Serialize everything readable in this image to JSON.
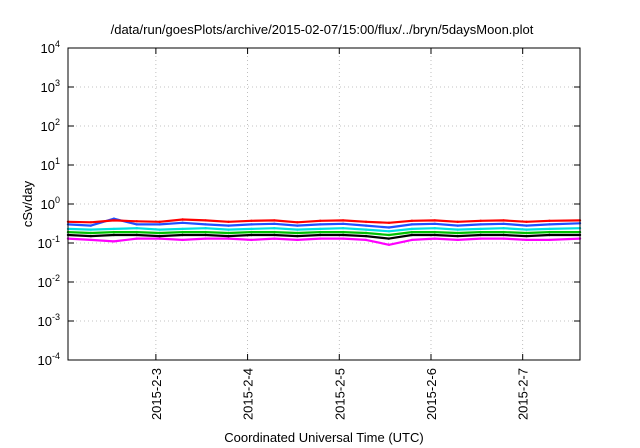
{
  "chart_data": {
    "type": "line",
    "title": "/data/run/goesPlots/archive/2015-02-07/15:00/flux/../bryn/5daysMoon.plot",
    "xlabel": "Coordinated Universal Time (UTC)",
    "ylabel": "cSv/day",
    "yscale": "log",
    "ylim": [
      0.0001,
      10000
    ],
    "xlim": [
      "2015-02-02 01:00",
      "2015-02-07 15:00"
    ],
    "grid": true,
    "x_ticks": [
      {
        "date": "2015-02-03",
        "label": "2015-2-3"
      },
      {
        "date": "2015-02-04",
        "label": "2015-2-4"
      },
      {
        "date": "2015-02-05",
        "label": "2015-2-5"
      },
      {
        "date": "2015-02-06",
        "label": "2015-2-6"
      },
      {
        "date": "2015-02-07",
        "label": "2015-2-7"
      }
    ],
    "y_ticks": [
      {
        "value": 0.0001,
        "base": "10",
        "exp": "-4"
      },
      {
        "value": 0.001,
        "base": "10",
        "exp": "-3"
      },
      {
        "value": 0.01,
        "base": "10",
        "exp": "-2"
      },
      {
        "value": 0.1,
        "base": "10",
        "exp": "-1"
      },
      {
        "value": 1,
        "base": "10",
        "exp": "0"
      },
      {
        "value": 10,
        "base": "10",
        "exp": "1"
      },
      {
        "value": 100,
        "base": "10",
        "exp": "2"
      },
      {
        "value": 1000,
        "base": "10",
        "exp": "3"
      },
      {
        "value": 10000,
        "base": "10",
        "exp": "4"
      }
    ],
    "series": [
      {
        "color": "#ff00ff",
        "x": [
          "2015-02-02 01:00",
          "2015-02-02 07:00",
          "2015-02-02 13:00",
          "2015-02-02 19:00",
          "2015-02-03 01:00",
          "2015-02-03 07:00",
          "2015-02-03 13:00",
          "2015-02-03 19:00",
          "2015-02-04 01:00",
          "2015-02-04 07:00",
          "2015-02-04 13:00",
          "2015-02-04 19:00",
          "2015-02-05 01:00",
          "2015-02-05 07:00",
          "2015-02-05 13:00",
          "2015-02-05 19:00",
          "2015-02-06 01:00",
          "2015-02-06 07:00",
          "2015-02-06 13:00",
          "2015-02-06 19:00",
          "2015-02-07 01:00",
          "2015-02-07 07:00",
          "2015-02-07 15:00"
        ],
        "values": [
          0.13,
          0.12,
          0.11,
          0.13,
          0.13,
          0.12,
          0.13,
          0.13,
          0.12,
          0.13,
          0.12,
          0.13,
          0.13,
          0.12,
          0.09,
          0.12,
          0.13,
          0.12,
          0.13,
          0.13,
          0.12,
          0.12,
          0.13
        ]
      },
      {
        "color": "#000000",
        "x": [
          "2015-02-02 01:00",
          "2015-02-02 07:00",
          "2015-02-02 13:00",
          "2015-02-02 19:00",
          "2015-02-03 01:00",
          "2015-02-03 07:00",
          "2015-02-03 13:00",
          "2015-02-03 19:00",
          "2015-02-04 01:00",
          "2015-02-04 07:00",
          "2015-02-04 13:00",
          "2015-02-04 19:00",
          "2015-02-05 01:00",
          "2015-02-05 07:00",
          "2015-02-05 13:00",
          "2015-02-05 19:00",
          "2015-02-06 01:00",
          "2015-02-06 07:00",
          "2015-02-06 13:00",
          "2015-02-06 19:00",
          "2015-02-07 01:00",
          "2015-02-07 07:00",
          "2015-02-07 15:00"
        ],
        "values": [
          0.16,
          0.15,
          0.16,
          0.16,
          0.15,
          0.16,
          0.16,
          0.15,
          0.16,
          0.16,
          0.15,
          0.16,
          0.16,
          0.15,
          0.13,
          0.16,
          0.16,
          0.15,
          0.16,
          0.16,
          0.15,
          0.16,
          0.16
        ]
      },
      {
        "color": "#00c000",
        "x": [
          "2015-02-02 01:00",
          "2015-02-02 07:00",
          "2015-02-02 13:00",
          "2015-02-02 19:00",
          "2015-02-03 01:00",
          "2015-02-03 07:00",
          "2015-02-03 13:00",
          "2015-02-03 19:00",
          "2015-02-04 01:00",
          "2015-02-04 07:00",
          "2015-02-04 13:00",
          "2015-02-04 19:00",
          "2015-02-05 01:00",
          "2015-02-05 07:00",
          "2015-02-05 13:00",
          "2015-02-05 19:00",
          "2015-02-06 01:00",
          "2015-02-06 07:00",
          "2015-02-06 13:00",
          "2015-02-06 19:00",
          "2015-02-07 01:00",
          "2015-02-07 07:00",
          "2015-02-07 15:00"
        ],
        "values": [
          0.19,
          0.18,
          0.19,
          0.19,
          0.18,
          0.19,
          0.19,
          0.18,
          0.19,
          0.19,
          0.18,
          0.19,
          0.19,
          0.18,
          0.16,
          0.19,
          0.19,
          0.18,
          0.19,
          0.19,
          0.18,
          0.19,
          0.19
        ]
      },
      {
        "color": "#00e0e0",
        "x": [
          "2015-02-02 01:00",
          "2015-02-02 07:00",
          "2015-02-02 13:00",
          "2015-02-02 19:00",
          "2015-02-03 01:00",
          "2015-02-03 07:00",
          "2015-02-03 13:00",
          "2015-02-03 19:00",
          "2015-02-04 01:00",
          "2015-02-04 07:00",
          "2015-02-04 13:00",
          "2015-02-04 19:00",
          "2015-02-05 01:00",
          "2015-02-05 07:00",
          "2015-02-05 13:00",
          "2015-02-05 19:00",
          "2015-02-06 01:00",
          "2015-02-06 07:00",
          "2015-02-06 13:00",
          "2015-02-06 19:00",
          "2015-02-07 01:00",
          "2015-02-07 07:00",
          "2015-02-07 15:00"
        ],
        "values": [
          0.23,
          0.22,
          0.23,
          0.24,
          0.22,
          0.23,
          0.24,
          0.22,
          0.23,
          0.24,
          0.22,
          0.23,
          0.24,
          0.22,
          0.2,
          0.23,
          0.24,
          0.22,
          0.23,
          0.24,
          0.22,
          0.23,
          0.24
        ]
      },
      {
        "color": "#2050ff",
        "x": [
          "2015-02-02 01:00",
          "2015-02-02 07:00",
          "2015-02-02 13:00",
          "2015-02-02 19:00",
          "2015-02-03 01:00",
          "2015-02-03 07:00",
          "2015-02-03 13:00",
          "2015-02-03 19:00",
          "2015-02-04 01:00",
          "2015-02-04 07:00",
          "2015-02-04 13:00",
          "2015-02-04 19:00",
          "2015-02-05 01:00",
          "2015-02-05 07:00",
          "2015-02-05 13:00",
          "2015-02-05 19:00",
          "2015-02-06 01:00",
          "2015-02-06 07:00",
          "2015-02-06 13:00",
          "2015-02-06 19:00",
          "2015-02-07 01:00",
          "2015-02-07 07:00",
          "2015-02-07 15:00"
        ],
        "values": [
          0.3,
          0.28,
          0.42,
          0.3,
          0.3,
          0.33,
          0.3,
          0.28,
          0.3,
          0.31,
          0.28,
          0.3,
          0.31,
          0.28,
          0.25,
          0.3,
          0.31,
          0.28,
          0.3,
          0.31,
          0.28,
          0.3,
          0.32
        ]
      },
      {
        "color": "#ff0000",
        "x": [
          "2015-02-02 01:00",
          "2015-02-02 07:00",
          "2015-02-02 13:00",
          "2015-02-02 19:00",
          "2015-02-03 01:00",
          "2015-02-03 07:00",
          "2015-02-03 13:00",
          "2015-02-03 19:00",
          "2015-02-04 01:00",
          "2015-02-04 07:00",
          "2015-02-04 13:00",
          "2015-02-04 19:00",
          "2015-02-05 01:00",
          "2015-02-05 07:00",
          "2015-02-05 13:00",
          "2015-02-05 19:00",
          "2015-02-06 01:00",
          "2015-02-06 07:00",
          "2015-02-06 13:00",
          "2015-02-06 19:00",
          "2015-02-07 01:00",
          "2015-02-07 07:00",
          "2015-02-07 15:00"
        ],
        "values": [
          0.35,
          0.34,
          0.38,
          0.36,
          0.35,
          0.4,
          0.38,
          0.35,
          0.37,
          0.38,
          0.34,
          0.37,
          0.38,
          0.35,
          0.33,
          0.37,
          0.38,
          0.35,
          0.37,
          0.38,
          0.35,
          0.37,
          0.38
        ]
      }
    ]
  }
}
